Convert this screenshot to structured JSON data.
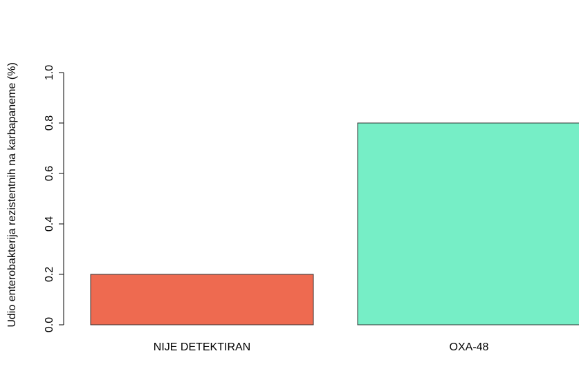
{
  "chart_data": {
    "type": "bar",
    "ylabel": "Udio enterobakterija rezistentnih na karbapaneme (%)",
    "categories": [
      "NIJE DETEKTIRAN",
      "OXA-48"
    ],
    "values": [
      0.2,
      0.8
    ],
    "colors": [
      "#ee6a50",
      "#76eec6"
    ],
    "ylim": [
      0,
      1
    ],
    "yticks": [
      {
        "value": 0,
        "label": "0.0"
      },
      0.2,
      0.4,
      0.6,
      0.8,
      {
        "value": 1,
        "label": "1.0"
      }
    ]
  }
}
